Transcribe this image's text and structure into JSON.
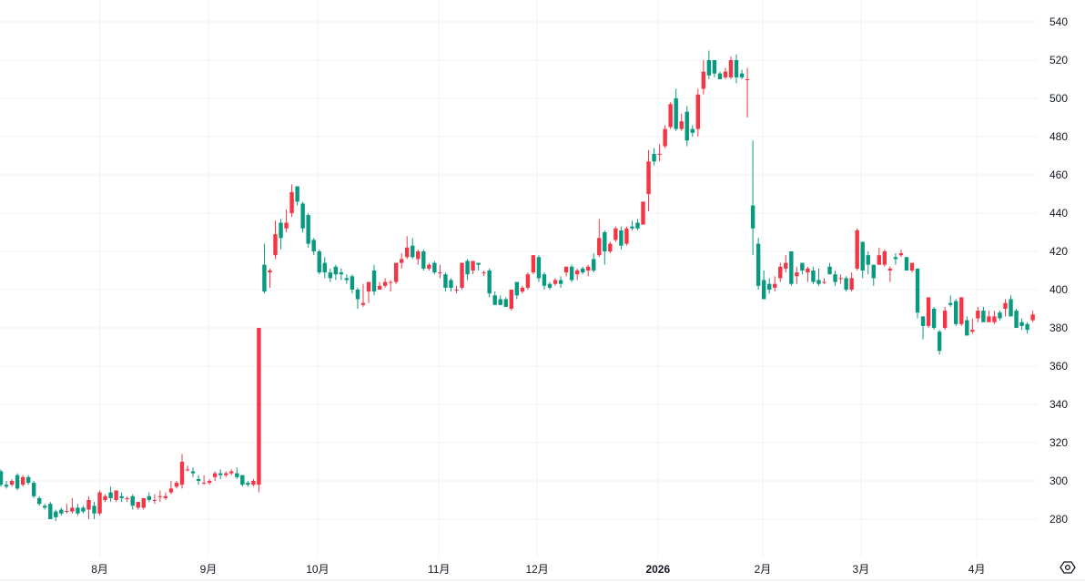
{
  "chart_data": {
    "type": "candlestick",
    "title": "",
    "xlabel": "",
    "ylabel": "",
    "ylim": [
      261,
      551
    ],
    "y_ticks": [
      280,
      300,
      320,
      340,
      360,
      380,
      400,
      420,
      440,
      460,
      480,
      500,
      520,
      540
    ],
    "x_ticks": [
      {
        "label": "8月",
        "at_index": 18,
        "bold": false
      },
      {
        "label": "9月",
        "at_index": 37.8,
        "bold": false
      },
      {
        "label": "10月",
        "at_index": 57.7,
        "bold": false
      },
      {
        "label": "11月",
        "at_index": 79.8,
        "bold": false
      },
      {
        "label": "12月",
        "at_index": 97.7,
        "bold": false
      },
      {
        "label": "2026",
        "at_index": 119.7,
        "bold": true
      },
      {
        "label": "2月",
        "at_index": 138.8,
        "bold": false
      },
      {
        "label": "3月",
        "at_index": 156.7,
        "bold": false
      },
      {
        "label": "4月",
        "at_index": 177.8,
        "bold": false
      }
    ],
    "grid": true,
    "colors": {
      "up": "#f23645",
      "down": "#089981",
      "grid": "#f0f3fa"
    },
    "ohlc_fields": [
      "open",
      "high",
      "low",
      "close"
    ],
    "ohlc": [
      [
        305,
        306,
        297,
        298
      ],
      [
        298,
        300,
        296,
        297
      ],
      [
        298,
        301,
        297,
        300
      ],
      [
        303,
        304,
        295,
        296
      ],
      [
        298,
        303,
        297,
        302
      ],
      [
        302,
        303,
        298,
        299
      ],
      [
        299,
        300,
        291,
        292
      ],
      [
        291,
        292,
        287,
        288
      ],
      [
        287,
        288,
        285,
        286
      ],
      [
        288,
        289,
        280,
        280
      ],
      [
        284,
        285,
        279,
        281
      ],
      [
        285,
        286,
        282,
        283
      ],
      [
        284,
        288,
        283,
        284.3
      ],
      [
        284,
        291,
        283,
        286
      ],
      [
        286,
        288,
        282,
        283
      ],
      [
        286,
        287,
        283,
        284
      ],
      [
        285,
        292,
        280,
        290
      ],
      [
        287,
        289,
        280,
        283
      ],
      [
        283,
        295,
        282,
        294
      ],
      [
        290,
        293,
        289,
        292
      ],
      [
        294,
        297,
        289,
        291
      ],
      [
        290,
        295,
        289,
        295
      ],
      [
        292,
        294,
        289,
        291
      ],
      [
        290.5,
        292,
        289,
        291
      ],
      [
        292,
        293,
        285,
        287
      ],
      [
        286,
        289,
        285,
        289
      ],
      [
        286,
        291,
        285,
        291
      ],
      [
        292,
        294,
        289,
        290
      ],
      [
        289.7,
        293,
        288,
        290
      ],
      [
        291.7,
        295,
        289,
        292
      ],
      [
        291,
        294,
        290,
        292
      ],
      [
        294,
        300,
        293,
        296
      ],
      [
        297,
        300,
        296,
        299
      ],
      [
        298,
        314,
        296,
        310
      ],
      [
        305.8,
        308,
        305,
        306
      ],
      [
        305,
        307,
        302,
        304
      ],
      [
        301,
        303,
        298,
        300
      ],
      [
        298.7,
        303,
        298,
        299
      ],
      [
        299,
        301,
        298,
        300
      ],
      [
        302,
        305,
        300,
        304
      ],
      [
        304,
        306,
        301,
        303
      ],
      [
        303,
        305,
        302,
        304
      ],
      [
        304,
        306,
        303,
        305
      ],
      [
        304,
        307,
        301,
        302
      ],
      [
        303,
        303,
        297,
        298
      ],
      [
        299,
        300,
        297,
        298
      ],
      [
        298,
        301,
        297,
        300
      ],
      [
        298,
        380,
        294,
        380
      ],
      [
        413,
        424,
        398,
        399
      ],
      [
        409,
        411,
        401,
        410
      ],
      [
        418,
        436,
        416,
        429
      ],
      [
        435,
        437,
        421,
        427
      ],
      [
        432,
        442,
        430,
        435
      ],
      [
        440,
        455,
        438,
        451
      ],
      [
        454,
        454,
        444,
        446
      ],
      [
        445,
        446,
        430,
        432
      ],
      [
        439,
        440,
        422,
        424
      ],
      [
        426,
        427,
        418,
        420
      ],
      [
        420,
        421,
        408,
        409
      ],
      [
        414,
        417,
        406,
        409
      ],
      [
        409,
        411,
        404,
        406
      ],
      [
        412,
        413,
        405,
        408
      ],
      [
        409,
        411,
        405,
        408
      ],
      [
        406,
        408,
        403,
        405
      ],
      [
        407,
        408,
        398,
        400
      ],
      [
        400,
        401,
        390,
        395
      ],
      [
        392,
        403,
        391,
        393
      ],
      [
        399,
        404,
        393,
        404
      ],
      [
        410,
        413,
        397,
        399
      ],
      [
        400,
        404,
        400,
        402
      ],
      [
        402,
        406,
        401,
        404
      ],
      [
        403.7,
        405,
        399,
        404
      ],
      [
        404,
        414,
        403,
        414
      ],
      [
        414,
        419,
        411,
        416
      ],
      [
        417,
        428,
        416,
        422
      ],
      [
        423,
        427,
        416,
        417
      ],
      [
        416,
        421,
        413,
        420
      ],
      [
        420,
        421,
        410,
        411
      ],
      [
        411,
        414,
        410,
        413
      ],
      [
        414,
        415,
        408,
        409
      ],
      [
        408.7,
        413,
        406,
        409
      ],
      [
        408,
        409,
        399,
        401
      ],
      [
        405,
        406,
        399,
        401
      ],
      [
        399.7,
        402,
        398,
        400
      ],
      [
        401,
        414,
        400,
        414
      ],
      [
        415,
        416,
        405,
        408
      ],
      [
        410,
        415,
        408,
        415
      ],
      [
        414,
        414,
        410,
        413
      ],
      [
        408.7,
        410,
        407,
        409
      ],
      [
        410,
        411,
        396,
        398
      ],
      [
        397,
        399,
        392,
        392
      ],
      [
        395,
        397,
        392,
        392
      ],
      [
        395,
        396,
        391,
        391
      ],
      [
        390,
        400,
        389,
        400
      ],
      [
        404,
        404,
        395,
        397
      ],
      [
        399,
        402,
        398,
        401
      ],
      [
        401,
        409,
        400,
        408
      ],
      [
        409,
        418,
        408,
        418
      ],
      [
        417,
        418,
        404,
        406
      ],
      [
        408,
        409,
        400,
        402
      ],
      [
        403,
        404,
        400,
        401
      ],
      [
        403,
        406,
        402,
        405
      ],
      [
        405,
        407,
        401,
        403
      ],
      [
        409,
        412,
        407,
        412
      ],
      [
        412,
        413,
        404,
        405
      ],
      [
        408,
        411,
        405,
        410
      ],
      [
        411,
        412,
        408,
        409
      ],
      [
        410,
        413,
        407,
        412
      ],
      [
        416,
        419,
        409,
        410
      ],
      [
        418,
        437,
        417,
        427
      ],
      [
        430,
        431,
        413,
        420
      ],
      [
        420,
        425,
        419,
        424
      ],
      [
        426,
        433,
        425,
        432
      ],
      [
        431,
        433,
        421,
        423
      ],
      [
        424,
        433,
        423,
        432
      ],
      [
        433,
        436,
        431,
        432
      ],
      [
        435,
        437,
        431,
        432
      ],
      [
        434,
        446,
        434,
        446
      ],
      [
        450,
        473,
        441,
        467
      ],
      [
        471,
        474,
        465,
        467
      ],
      [
        470.7,
        476,
        467,
        471
      ],
      [
        475,
        486,
        474,
        484
      ],
      [
        485,
        498,
        484,
        497
      ],
      [
        500,
        505,
        483,
        484
      ],
      [
        484,
        492,
        483,
        488
      ],
      [
        493,
        496,
        475,
        478
      ],
      [
        484,
        486,
        480,
        482
      ],
      [
        484,
        505,
        480,
        502
      ],
      [
        505,
        520,
        502,
        514
      ],
      [
        520,
        525,
        510,
        512
      ],
      [
        520,
        520,
        511,
        513
      ],
      [
        513,
        514,
        510,
        510
      ],
      [
        511,
        516,
        510,
        514
      ],
      [
        511,
        522,
        510,
        520
      ],
      [
        520,
        523,
        508,
        511
      ],
      [
        513,
        515,
        510,
        511
      ],
      [
        509.7,
        516,
        490,
        510
      ],
      [
        444,
        478,
        418,
        432
      ],
      [
        424,
        427,
        400,
        402
      ],
      [
        405,
        410,
        395,
        395
      ],
      [
        403,
        406,
        398,
        400
      ],
      [
        401,
        407,
        399,
        403
      ],
      [
        406,
        414,
        404,
        412
      ],
      [
        411,
        418,
        409,
        414
      ],
      [
        420,
        420,
        402,
        403
      ],
      [
        407,
        412,
        403,
        409
      ],
      [
        414,
        414,
        408,
        410
      ],
      [
        409,
        412,
        404,
        411
      ],
      [
        410,
        412,
        403,
        404
      ],
      [
        405,
        411,
        402,
        403
      ],
      [
        403.7,
        406,
        403,
        404
      ],
      [
        412,
        414,
        408,
        408
      ],
      [
        408,
        410,
        402,
        404
      ],
      [
        405.8,
        408,
        403,
        406
      ],
      [
        406,
        407,
        399,
        400
      ],
      [
        400,
        409,
        399,
        406
      ],
      [
        411,
        432,
        410,
        431
      ],
      [
        425,
        425,
        406,
        410
      ],
      [
        418,
        420,
        408,
        413
      ],
      [
        413,
        413,
        402,
        406
      ],
      [
        413,
        422,
        413,
        418
      ],
      [
        413,
        421,
        412,
        420
      ],
      [
        410,
        412,
        404,
        411
      ],
      [
        417,
        419,
        413,
        416
      ],
      [
        418,
        421,
        417,
        419
      ],
      [
        417,
        417,
        410,
        410
      ],
      [
        410,
        414,
        409,
        414
      ],
      [
        411,
        411,
        385,
        388
      ],
      [
        386,
        386,
        374,
        381
      ],
      [
        381,
        396,
        380,
        396
      ],
      [
        390,
        391,
        379,
        380
      ],
      [
        378,
        379,
        366,
        368
      ],
      [
        380,
        391,
        379,
        389
      ],
      [
        393,
        397,
        391,
        392
      ],
      [
        394,
        395,
        381,
        382
      ],
      [
        382,
        396,
        381,
        396
      ],
      [
        384,
        386,
        376,
        376
      ],
      [
        378,
        385,
        377,
        379
      ],
      [
        385,
        391,
        383,
        389
      ],
      [
        389,
        391,
        383,
        383
      ],
      [
        383,
        389,
        383,
        386
      ],
      [
        383,
        389,
        382,
        386
      ],
      [
        388,
        389,
        384,
        385
      ],
      [
        390,
        395,
        386,
        393
      ],
      [
        395,
        397,
        386,
        386
      ],
      [
        389,
        390,
        380,
        380
      ],
      [
        383,
        385,
        379,
        381
      ],
      [
        382,
        383,
        377,
        379
      ],
      [
        384,
        389,
        383,
        387
      ]
    ]
  },
  "controls": {
    "settings_icon": "hexagon-settings-icon"
  }
}
